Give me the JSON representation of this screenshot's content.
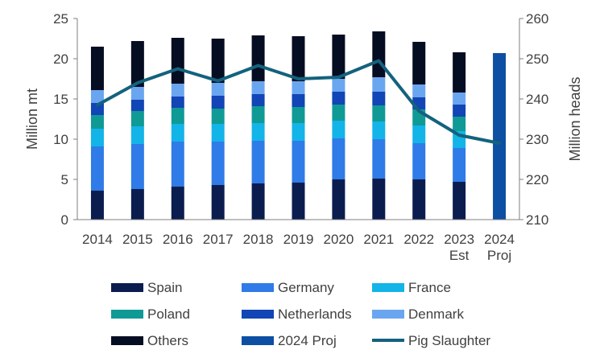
{
  "chart_data": {
    "type": "bar",
    "stacked": true,
    "categories": [
      [
        "2014"
      ],
      [
        "2015"
      ],
      [
        "2016"
      ],
      [
        "2017"
      ],
      [
        "2018"
      ],
      [
        "2019"
      ],
      [
        "2020"
      ],
      [
        "2021"
      ],
      [
        "2022"
      ],
      [
        "2023",
        "Est"
      ],
      [
        "2024",
        "Proj"
      ]
    ],
    "ylabel": "Million mt",
    "y2label": "Million heads",
    "ylim": [
      0,
      25
    ],
    "y2lim": [
      210,
      260
    ],
    "yticks": [
      0,
      5,
      10,
      15,
      20,
      25
    ],
    "y2ticks": [
      210,
      220,
      230,
      240,
      250,
      260
    ],
    "grid": false,
    "legend_position": "bottom",
    "series": [
      {
        "name": "Spain",
        "color": "#0b1d4f",
        "values": [
          3.6,
          3.8,
          4.1,
          4.3,
          4.5,
          4.6,
          5.0,
          5.1,
          5.0,
          4.7,
          null
        ]
      },
      {
        "name": "Germany",
        "color": "#2f7be8",
        "values": [
          5.5,
          5.6,
          5.6,
          5.4,
          5.3,
          5.2,
          5.1,
          4.9,
          4.5,
          4.2,
          null
        ]
      },
      {
        "name": "France",
        "color": "#13b4e8",
        "values": [
          2.2,
          2.2,
          2.2,
          2.2,
          2.2,
          2.2,
          2.2,
          2.2,
          2.2,
          2.1,
          null
        ]
      },
      {
        "name": "Poland",
        "color": "#0f9a96",
        "values": [
          1.7,
          1.9,
          2.0,
          1.9,
          2.1,
          2.0,
          2.0,
          2.0,
          2.0,
          1.8,
          null
        ]
      },
      {
        "name": "Netherlands",
        "color": "#1245b5",
        "values": [
          1.5,
          1.4,
          1.4,
          1.6,
          1.5,
          1.6,
          1.6,
          1.7,
          1.5,
          1.5,
          null
        ]
      },
      {
        "name": "Denmark",
        "color": "#6aa6f0",
        "values": [
          1.6,
          1.6,
          1.6,
          1.6,
          1.6,
          1.6,
          1.6,
          1.8,
          1.6,
          1.5,
          null
        ]
      },
      {
        "name": "Others",
        "color": "#050d22",
        "values": [
          5.4,
          5.7,
          5.7,
          5.5,
          5.7,
          5.6,
          5.5,
          5.7,
          5.3,
          5.0,
          null
        ]
      },
      {
        "name": "2024 Proj",
        "color": "#0d4fa3",
        "values": [
          null,
          null,
          null,
          null,
          null,
          null,
          null,
          null,
          null,
          null,
          20.7
        ]
      }
    ],
    "line_series": {
      "name": "Pig Slaughter",
      "color": "#13627d",
      "axis": "right",
      "values": [
        238.5,
        244.0,
        247.5,
        244.5,
        248.3,
        245.0,
        245.4,
        249.5,
        237.0,
        231.0,
        229.0
      ]
    }
  }
}
